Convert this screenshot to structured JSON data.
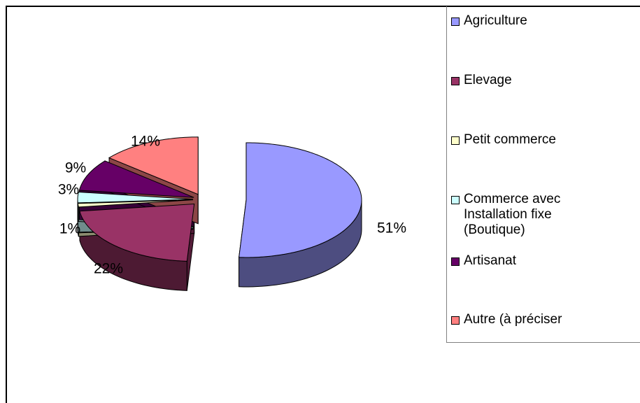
{
  "chart_data": {
    "type": "pie",
    "categories": [
      "Agriculture",
      "Elevage",
      "Petit commerce",
      "Commerce avec Installation fixe (Boutique)",
      "Artisanat",
      "Autre (à préciser"
    ],
    "values": [
      51,
      22,
      1,
      3,
      9,
      14
    ],
    "value_labels": [
      "51%",
      "22%",
      "1%",
      "3%",
      "9%",
      "14%"
    ],
    "colors": [
      "#9999ff",
      "#993366",
      "#ffffcc",
      "#ccffff",
      "#660066",
      "#ff8080"
    ],
    "legend": "right"
  }
}
